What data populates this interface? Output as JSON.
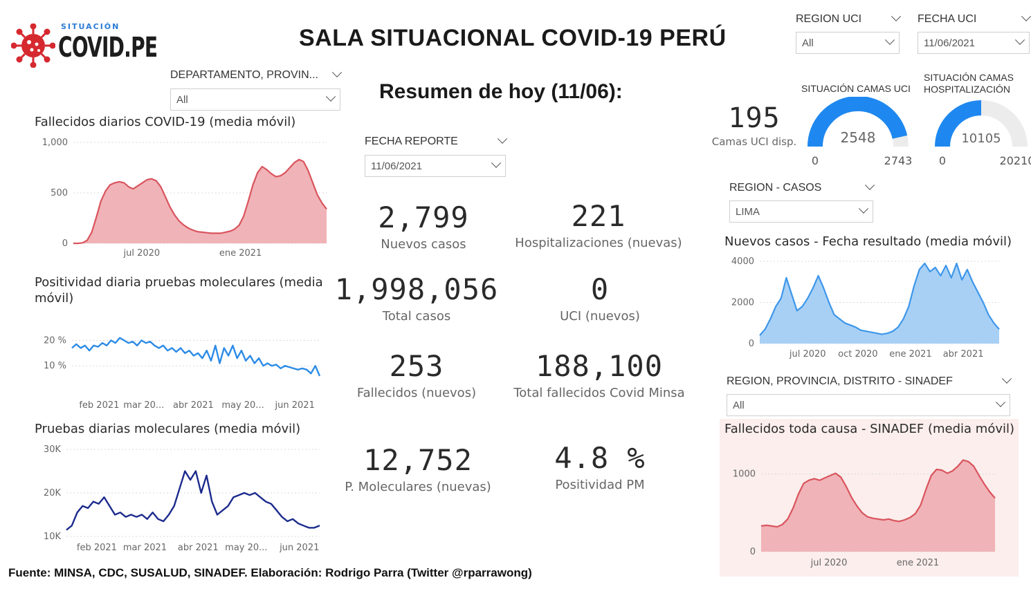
{
  "logo": {
    "kicker": "SITUACIÓN",
    "main": "COVID.PE"
  },
  "title": "SALA SITUACIONAL COVID-19 PERÚ",
  "summary_title": "Resumen de hoy (11/06):",
  "slicers": {
    "region_uci": {
      "label": "REGION UCI",
      "value": "All"
    },
    "fecha_uci": {
      "label": "FECHA UCI",
      "value": "11/06/2021"
    },
    "departamento": {
      "label": "DEPARTAMENTO, PROVIN...",
      "value": "All"
    },
    "fecha_reporte": {
      "label": "FECHA REPORTE",
      "value": "11/06/2021"
    },
    "region_casos": {
      "label": "REGION - CASOS",
      "value": "LIMA"
    },
    "sinadef": {
      "label": "REGION, PROVINCIA, DISTRITO - SINADEF",
      "value": "All"
    }
  },
  "kpis": [
    {
      "value": "2,799",
      "label": "Nuevos casos"
    },
    {
      "value": "221",
      "label": "Hospitalizaciones (nuevas)"
    },
    {
      "value": "1,998,056",
      "label": "Total casos"
    },
    {
      "value": "0",
      "label": "UCI (nuevos)"
    },
    {
      "value": "253",
      "label": "Fallecidos  (nuevos)"
    },
    {
      "value": "188,100",
      "label": "Total fallecidos Covid Minsa"
    },
    {
      "value": "12,752",
      "label": "P. Moleculares (nuevas)"
    },
    {
      "value": "4.8 %",
      "label": "Positividad PM"
    }
  ],
  "uci_card": {
    "value": "195",
    "label": "Camas UCI disp."
  },
  "gauges": [
    {
      "title": "SITUACIÓN CAMAS UCI",
      "value": 2548,
      "min": 0,
      "max": 2743,
      "value_label": "2548",
      "min_label": "0",
      "max_label": "2743"
    },
    {
      "title": "SITUACIÓN CAMAS HOSPITALIZACIÓN",
      "value": 10105,
      "min": 0,
      "max": 20210,
      "value_label": "10105",
      "min_label": "0",
      "max_label": "20210"
    }
  ],
  "footer": "Fuente: MINSA, CDC, SUSALUD, SINADEF. Elaboración: Rodrigo Parra (Twitter @rparrawong)",
  "colors": {
    "deaths": "#d9545d",
    "deaths_fill": "#f0b3b8",
    "positivity": "#2b8be6",
    "tests": "#1b2a8c",
    "cases": "#3d96ea",
    "cases_fill": "#a8d0f5",
    "sinadef": "#d9545d",
    "gauge": "#1e88f0",
    "gauge_track": "#ececec"
  },
  "chart_data": [
    {
      "id": "fallecidos",
      "type": "area",
      "title": "Fallecidos diarios COVID-19 (media móvil)",
      "xlabel": "",
      "ylabel": "",
      "ylim": [
        0,
        1000
      ],
      "yticks": [
        0,
        500,
        1000
      ],
      "ytick_labels": [
        "0",
        "500",
        "1,000"
      ],
      "xticks": [
        {
          "x": 0.27,
          "label": "jul 2020"
        },
        {
          "x": 0.66,
          "label": "ene 2021"
        }
      ],
      "grid": true,
      "values": [
        0,
        0,
        5,
        30,
        110,
        260,
        420,
        520,
        580,
        600,
        610,
        600,
        560,
        540,
        570,
        600,
        630,
        640,
        620,
        560,
        460,
        360,
        280,
        220,
        180,
        150,
        130,
        115,
        110,
        105,
        100,
        100,
        100,
        110,
        120,
        140,
        180,
        270,
        420,
        580,
        700,
        760,
        730,
        690,
        660,
        670,
        700,
        750,
        800,
        830,
        810,
        720,
        600,
        480,
        400,
        340
      ]
    },
    {
      "id": "positividad",
      "type": "line",
      "title": "Positividad diaria pruebas moleculares (media móvil)",
      "xlabel": "",
      "ylabel": "",
      "ylim": [
        0,
        25
      ],
      "yticks": [
        10,
        20
      ],
      "ytick_labels": [
        "10 %",
        "20 %"
      ],
      "xticks": [
        {
          "x": 0.11,
          "label": "feb 2021"
        },
        {
          "x": 0.29,
          "label": "mar 20..."
        },
        {
          "x": 0.49,
          "label": "abr 2021"
        },
        {
          "x": 0.69,
          "label": "may 20..."
        },
        {
          "x": 0.9,
          "label": "jun 2021"
        }
      ],
      "grid": true,
      "values": [
        17,
        18.5,
        17,
        18,
        16,
        18,
        17.5,
        19,
        18,
        20,
        19,
        21,
        20,
        19,
        19.5,
        18,
        20,
        19,
        19.5,
        18,
        17,
        18,
        16,
        17,
        15.5,
        17,
        15,
        16,
        14,
        15,
        13,
        16,
        12,
        18,
        11,
        17,
        14,
        18,
        13,
        16,
        12,
        14,
        11,
        13,
        10,
        11,
        10,
        10.5,
        9,
        10,
        9.5,
        9,
        8.5,
        9,
        8.5,
        7,
        10,
        6
      ]
    },
    {
      "id": "pruebas",
      "type": "line",
      "title": "Pruebas diarias moleculares (media móvil)",
      "xlabel": "",
      "ylabel": "",
      "ylim": [
        10000,
        30000
      ],
      "yticks": [
        10000,
        20000,
        30000
      ],
      "ytick_labels": [
        "10K",
        "20K",
        "30K"
      ],
      "xticks": [
        {
          "x": 0.12,
          "label": "feb 2021"
        },
        {
          "x": 0.31,
          "label": "mar 2021"
        },
        {
          "x": 0.52,
          "label": "abr 2021"
        },
        {
          "x": 0.71,
          "label": "may 20..."
        },
        {
          "x": 0.92,
          "label": "jun 2021"
        }
      ],
      "grid": true,
      "values": [
        11500,
        12500,
        15500,
        17000,
        16500,
        18000,
        17500,
        19000,
        17000,
        15000,
        15500,
        14500,
        15000,
        14500,
        15000,
        14000,
        15500,
        14000,
        13500,
        15000,
        17000,
        21000,
        25000,
        23000,
        25000,
        20000,
        24000,
        18000,
        15000,
        16000,
        17000,
        19000,
        19500,
        20000,
        19500,
        20000,
        19000,
        18000,
        17500,
        16000,
        14500,
        13500,
        14000,
        13000,
        12500,
        12000,
        12000,
        12500
      ]
    },
    {
      "id": "nuevos_casos",
      "type": "area",
      "title": "Nuevos casos - Fecha resultado (media móvil)",
      "xlabel": "",
      "ylabel": "",
      "ylim": [
        0,
        4000
      ],
      "yticks": [
        0,
        2000,
        4000
      ],
      "ytick_labels": [
        "0",
        "2000",
        "4000"
      ],
      "xticks": [
        {
          "x": 0.2,
          "label": "jul 2020"
        },
        {
          "x": 0.41,
          "label": "oct 2020"
        },
        {
          "x": 0.63,
          "label": "ene 2021"
        },
        {
          "x": 0.85,
          "label": "abr 2021"
        }
      ],
      "grid": true,
      "values": [
        400,
        700,
        1200,
        1800,
        2200,
        3200,
        2400,
        1600,
        1800,
        2200,
        2700,
        3300,
        2700,
        2000,
        1400,
        1200,
        1000,
        900,
        800,
        650,
        600,
        550,
        500,
        450,
        500,
        600,
        800,
        1200,
        1800,
        2800,
        3600,
        3900,
        3500,
        3700,
        3300,
        3800,
        3200,
        3900,
        3100,
        3600,
        3000,
        2500,
        2000,
        1400,
        1000,
        700
      ]
    },
    {
      "id": "sinadef",
      "type": "area",
      "title": "Fallecidos toda causa - SINADEF (media móvil)",
      "xlabel": "",
      "ylabel": "",
      "ylim": [
        0,
        1300
      ],
      "yticks": [
        0,
        1000
      ],
      "ytick_labels": [
        "0",
        "1000"
      ],
      "xticks": [
        {
          "x": 0.29,
          "label": "jul 2020"
        },
        {
          "x": 0.67,
          "label": "ene 2021"
        }
      ],
      "grid": true,
      "values": [
        330,
        340,
        330,
        320,
        350,
        420,
        560,
        740,
        880,
        920,
        940,
        920,
        950,
        980,
        1010,
        960,
        840,
        700,
        590,
        500,
        450,
        430,
        420,
        410,
        420,
        400,
        390,
        410,
        440,
        490,
        600,
        800,
        980,
        1060,
        1050,
        1010,
        1040,
        1100,
        1180,
        1160,
        1100,
        980,
        870,
        770,
        690
      ]
    }
  ]
}
